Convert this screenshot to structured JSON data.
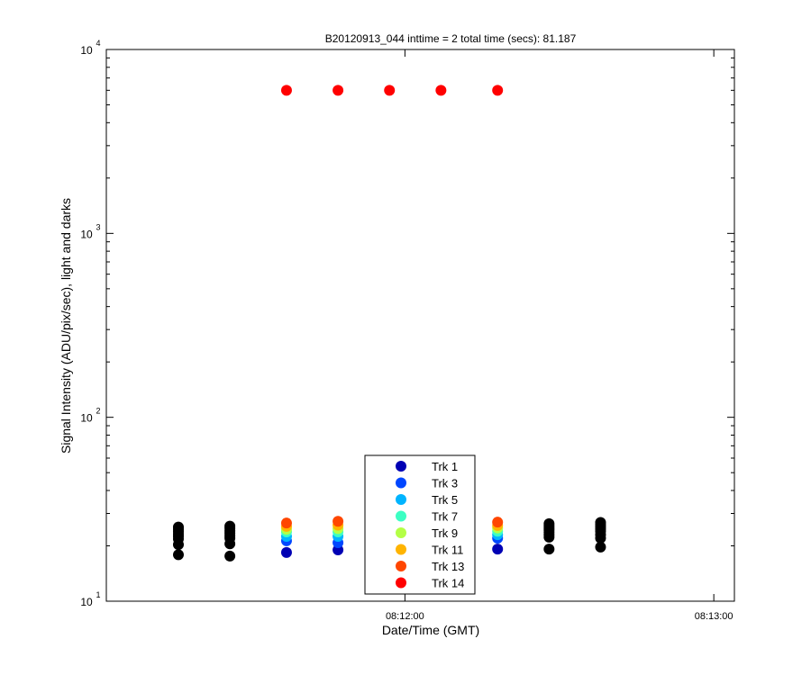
{
  "chart_data": {
    "type": "scatter",
    "title": "B20120913_044 inttime = 2 total time (secs): 81.187",
    "x_label": "Date/Time (GMT)",
    "y_label": "Signal Intensity (ADU/pix/sec), light and darks",
    "x": [
      "08:11:16",
      "08:11:26",
      "08:11:37",
      "08:11:47",
      "08:11:57",
      "08:12:07",
      "08:12:18",
      "08:12:28",
      "08:12:38"
    ],
    "xlim": [
      "08:11:02",
      "08:13:04"
    ],
    "xticks": [
      "08:12:00",
      "08:13:00"
    ],
    "ylim": [
      10,
      10000
    ],
    "yticks": [
      {
        "value": 10,
        "label": "10",
        "exponent": "1"
      },
      {
        "value": 100,
        "label": "10",
        "exponent": "2"
      },
      {
        "value": 1000,
        "label": "10",
        "exponent": "3"
      },
      {
        "value": 10000,
        "label": "10",
        "exponent": "4"
      }
    ],
    "log_y": true,
    "minor_ticks": true,
    "legend": "bottom-center",
    "dark_color": "#000000",
    "series": [
      {
        "name": "Trk 1",
        "color": "#0000b4",
        "values": [
          null,
          null,
          18.4,
          19.0,
          null,
          null,
          19.2,
          null,
          null
        ],
        "dark_values": [
          17.9,
          17.6,
          null,
          null,
          null,
          null,
          null,
          19.2,
          19.7
        ]
      },
      {
        "name": "Trk 3",
        "color": "#0046ff",
        "values": [
          null,
          null,
          21.3,
          20.8,
          null,
          null,
          22.0,
          null,
          null
        ],
        "dark_values": [
          20.3,
          20.5,
          null,
          null,
          null,
          null,
          null,
          22.3,
          22.0
        ]
      },
      {
        "name": "Trk 5",
        "color": "#00b4ff",
        "values": [
          null,
          null,
          22.5,
          22.5,
          null,
          null,
          23.0,
          null,
          null
        ],
        "dark_values": [
          21.8,
          22.0,
          null,
          null,
          null,
          null,
          null,
          23.0,
          23.0
        ]
      },
      {
        "name": "Trk 7",
        "color": "#3cffc3",
        "values": [
          null,
          null,
          23.8,
          23.8,
          null,
          null,
          24.0,
          null,
          null
        ],
        "dark_values": [
          22.5,
          22.7,
          null,
          null,
          null,
          null,
          null,
          23.7,
          24.0
        ]
      },
      {
        "name": "Trk 9",
        "color": "#b4ff46",
        "values": [
          null,
          null,
          24.6,
          24.8,
          null,
          null,
          25.0,
          null,
          null
        ],
        "dark_values": [
          23.2,
          23.4,
          null,
          null,
          null,
          null,
          null,
          24.4,
          24.7
        ]
      },
      {
        "name": "Trk 11",
        "color": "#ffb400",
        "values": [
          null,
          null,
          25.5,
          25.9,
          null,
          null,
          25.8,
          null,
          null
        ],
        "dark_values": [
          23.9,
          24.1,
          null,
          null,
          null,
          null,
          null,
          25.0,
          25.4
        ]
      },
      {
        "name": "Trk 13",
        "color": "#ff4600",
        "values": [
          null,
          null,
          26.6,
          27.2,
          null,
          null,
          26.9,
          null,
          null
        ],
        "dark_values": [
          24.6,
          24.9,
          null,
          null,
          null,
          null,
          null,
          25.7,
          26.1
        ]
      },
      {
        "name": "Trk 14",
        "color": "#ff0000",
        "values": [
          null,
          null,
          6000,
          6000,
          6000,
          6000,
          6000,
          null,
          null
        ],
        "dark_values": [
          25.3,
          25.6,
          null,
          null,
          null,
          null,
          null,
          26.4,
          26.8
        ]
      }
    ]
  }
}
